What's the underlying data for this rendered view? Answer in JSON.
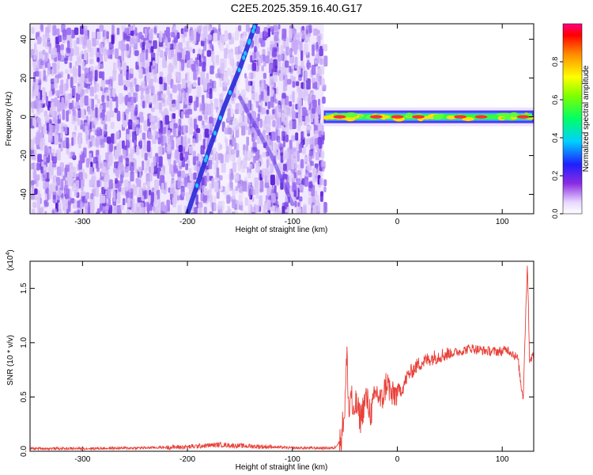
{
  "title": "C2E5.2025.359.16.40.G17",
  "chart_data": [
    {
      "type": "heatmap",
      "title": "C2E5.2025.359.16.40.G17",
      "xlabel": "Height of straight line (km)",
      "ylabel": "Frequency (Hz)",
      "xlim": [
        -350,
        130
      ],
      "ylim": [
        -50,
        48
      ],
      "xticks": [
        -300,
        -200,
        -100,
        0,
        100
      ],
      "xtick_labels": [
        "-300",
        "-200",
        "-100",
        "0",
        "100"
      ],
      "yticks": [
        -40,
        -20,
        0,
        20,
        40
      ],
      "ytick_labels": [
        "-40",
        "-20",
        "0",
        "20",
        "40"
      ],
      "noise_region_x": [
        -350,
        -70
      ],
      "tones": [
        {
          "name": "descending-streak-main",
          "x": [
            -200,
            -180,
            -165,
            -150,
            -135
          ],
          "freq": [
            -50,
            -18,
            5,
            25,
            48
          ]
        },
        {
          "name": "descending-streak-faint",
          "x": [
            -150,
            -120,
            -100
          ],
          "freq": [
            10,
            -20,
            -45
          ]
        }
      ],
      "carrier": {
        "x_start": -70,
        "x_end": 130,
        "freq": 0,
        "peak_points": [
          [
            -55,
            0.75
          ],
          [
            -20,
            0.7
          ],
          [
            0,
            0.9
          ],
          [
            20,
            0.95
          ],
          [
            60,
            0.8
          ],
          [
            80,
            0.9
          ],
          [
            120,
            0.95
          ]
        ]
      },
      "colorbar": {
        "label": "Normalized spectral amplitude",
        "ticks": [
          0.0,
          0.2,
          0.4,
          0.6,
          0.8
        ],
        "tick_labels": [
          "0.0",
          "0.2",
          "0.4",
          "0.6",
          "0.8"
        ],
        "range": [
          0,
          1
        ]
      }
    },
    {
      "type": "line",
      "xlabel": "Height of straight line (km)",
      "ylabel": "SNR (10 * v/v)",
      "y_multiplier_label": "(x10",
      "y_multiplier_exp": "4",
      "y_multiplier_close": ")",
      "xlim": [
        -350,
        130
      ],
      "ylim": [
        0,
        1.75
      ],
      "xticks": [
        -300,
        -200,
        -100,
        0,
        100
      ],
      "xtick_labels": [
        "-300",
        "-200",
        "-100",
        "0",
        "100"
      ],
      "yticks": [
        0.0,
        0.5,
        1.0,
        1.5
      ],
      "ytick_labels": [
        "0.0",
        "0.5",
        "1.0",
        "1.5"
      ],
      "series": [
        {
          "name": "SNR",
          "color": "#e8413a",
          "x": [
            -350,
            -300,
            -250,
            -200,
            -170,
            -150,
            -120,
            -100,
            -80,
            -60,
            -54,
            -50,
            -48,
            -46,
            -44,
            -42,
            -40,
            -35,
            -30,
            -25,
            -20,
            -15,
            -10,
            -5,
            0,
            5,
            10,
            20,
            30,
            40,
            50,
            60,
            70,
            80,
            90,
            100,
            105,
            110,
            115,
            118,
            120,
            122,
            124,
            126,
            130
          ],
          "y": [
            0.025,
            0.025,
            0.03,
            0.04,
            0.06,
            0.05,
            0.04,
            0.03,
            0.03,
            0.03,
            0.1,
            0.4,
            0.9,
            0.3,
            0.6,
            0.25,
            0.45,
            0.3,
            0.5,
            0.35,
            0.55,
            0.45,
            0.65,
            0.5,
            0.55,
            0.58,
            0.7,
            0.8,
            0.85,
            0.88,
            0.9,
            0.92,
            0.95,
            0.93,
            0.92,
            0.92,
            0.94,
            0.9,
            0.85,
            0.6,
            0.5,
            1.15,
            1.75,
            0.85,
            0.88
          ]
        }
      ]
    }
  ],
  "colors": {
    "axis": "#000000",
    "background": "#ffffff",
    "noise_light": "#d9c6f5",
    "noise_mid": "#9b6cf0",
    "noise_dark": "#5a1fd6",
    "streak": "#2f2fd8",
    "carrier_low": "#3fb8ff",
    "carrier_mid": "#33ff33",
    "carrier_high": "#ff3030"
  }
}
